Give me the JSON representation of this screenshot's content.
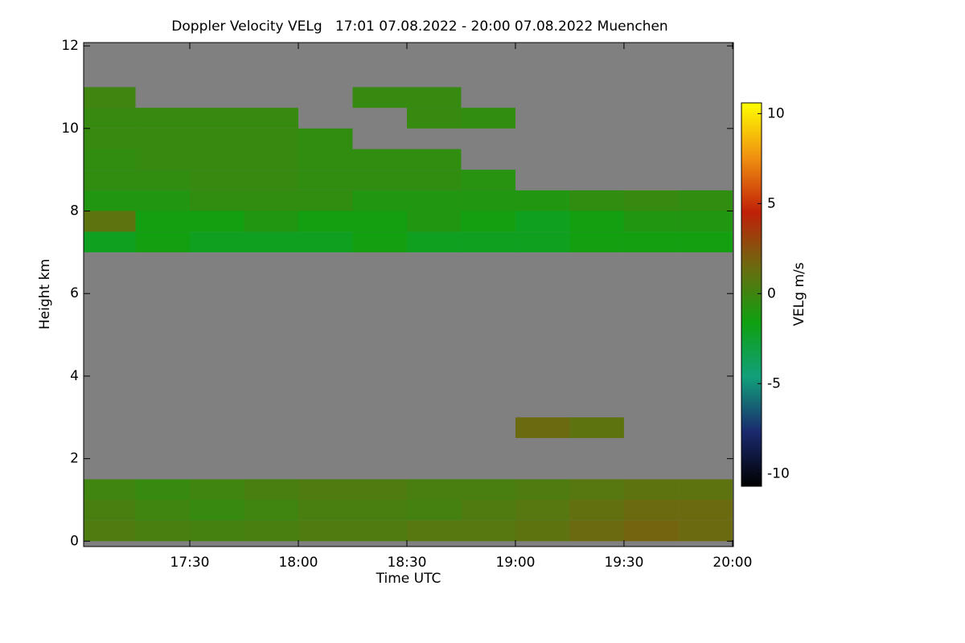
{
  "chart_data": {
    "type": "heatmap",
    "title": "Doppler Velocity VELg   17:01 07.08.2022 - 20:00 07.08.2022 Muenchen",
    "x_label": "Time UTC",
    "y_label": "Height km",
    "colorbar_label": "VELg m/s",
    "xlim": [
      17.011,
      20.004
    ],
    "xticks": [
      {
        "value": 17.5,
        "label": "17:30"
      },
      {
        "value": 18.0,
        "label": "18:00"
      },
      {
        "value": 18.5,
        "label": "18:30"
      },
      {
        "value": 19.0,
        "label": "19:00"
      },
      {
        "value": 19.5,
        "label": "19:30"
      },
      {
        "value": 20.0,
        "label": "20:00"
      }
    ],
    "ylim": [
      -0.13,
      12.08
    ],
    "yticks": [
      0,
      2,
      4,
      6,
      8,
      10,
      12
    ],
    "zlim": [
      -10.7,
      10.6
    ],
    "zticks": [
      -10,
      -5,
      0,
      5,
      10
    ],
    "colorscale": [
      "#000000",
      "#1a2a6e",
      "#11a07a",
      "#10a010",
      "#6b6b10",
      "#c02008",
      "#f09010",
      "#ffff00"
    ],
    "missing_color": "#808080",
    "x": [
      17.125,
      17.375,
      17.625,
      17.875,
      18.125,
      18.375,
      18.625,
      18.875,
      19.125,
      19.375,
      19.625,
      19.875
    ],
    "y": [
      0.25,
      0.75,
      1.25,
      1.75,
      2.25,
      2.75,
      3.25,
      3.75,
      4.25,
      4.75,
      5.25,
      5.75,
      6.25,
      6.75,
      7.25,
      7.75,
      8.25,
      8.75,
      9.25,
      9.75,
      10.25,
      10.75,
      11.25,
      11.75
    ],
    "z": [
      [
        0.5,
        0.3,
        0.2,
        0.3,
        0.5,
        0.5,
        0.8,
        0.8,
        1,
        1.5,
        1.8,
        1.5
      ],
      [
        0.3,
        0,
        -0.3,
        0,
        0.3,
        0.3,
        0.2,
        0.5,
        0.8,
        1.2,
        1.5,
        1.5
      ],
      [
        0,
        -0.3,
        0,
        0.3,
        0.5,
        0.5,
        0.3,
        0.3,
        0.5,
        0.8,
        1,
        1
      ],
      [
        null,
        null,
        null,
        null,
        null,
        null,
        null,
        null,
        null,
        null,
        null,
        null
      ],
      [
        null,
        null,
        null,
        null,
        null,
        null,
        null,
        null,
        null,
        null,
        null,
        null
      ],
      [
        null,
        null,
        null,
        null,
        null,
        null,
        null,
        null,
        1.5,
        1,
        null,
        null
      ],
      [
        null,
        null,
        null,
        null,
        null,
        null,
        null,
        null,
        null,
        null,
        null,
        null
      ],
      [
        null,
        null,
        null,
        null,
        null,
        null,
        null,
        null,
        null,
        null,
        null,
        null
      ],
      [
        null,
        null,
        null,
        null,
        null,
        null,
        null,
        null,
        null,
        null,
        null,
        null
      ],
      [
        null,
        null,
        null,
        null,
        null,
        null,
        null,
        null,
        null,
        null,
        null,
        null
      ],
      [
        null,
        null,
        null,
        null,
        null,
        null,
        null,
        null,
        null,
        null,
        null,
        null
      ],
      [
        null,
        null,
        null,
        null,
        null,
        null,
        null,
        null,
        null,
        null,
        null,
        null
      ],
      [
        null,
        null,
        null,
        null,
        null,
        null,
        null,
        null,
        null,
        null,
        null,
        null
      ],
      [
        null,
        null,
        null,
        null,
        null,
        null,
        null,
        null,
        null,
        null,
        null,
        null
      ],
      [
        -2,
        -1.5,
        -2,
        -2,
        -2,
        -1.5,
        -2,
        -2,
        -2,
        -1.5,
        -1.5,
        -1.5
      ],
      [
        1,
        -1.5,
        -1.5,
        -1,
        -1.5,
        -1.5,
        -1,
        -1.5,
        -2,
        -1.5,
        -1,
        -1
      ],
      [
        -1,
        -1,
        -0.5,
        -0.5,
        -0.5,
        -1,
        -1,
        -1,
        -1,
        -0.5,
        -0.3,
        -0.5
      ],
      [
        -0.5,
        -0.5,
        -0.3,
        -0.3,
        -0.5,
        -0.5,
        -0.5,
        -0.8,
        null,
        null,
        null,
        null
      ],
      [
        -0.5,
        -0.3,
        -0.3,
        -0.3,
        -0.5,
        -0.5,
        -0.5,
        null,
        null,
        null,
        null,
        null
      ],
      [
        -0.3,
        -0.3,
        -0.3,
        -0.3,
        -0.5,
        null,
        null,
        null,
        null,
        null,
        null,
        null
      ],
      [
        -0.3,
        -0.3,
        -0.3,
        -0.3,
        null,
        null,
        -0.3,
        -0.5,
        null,
        null,
        null,
        null
      ],
      [
        0,
        null,
        null,
        null,
        null,
        -0.3,
        -0.3,
        null,
        null,
        null,
        null,
        null
      ],
      [
        null,
        null,
        null,
        null,
        null,
        null,
        null,
        null,
        null,
        null,
        null,
        null
      ],
      [
        null,
        null,
        null,
        null,
        null,
        null,
        null,
        null,
        null,
        null,
        null,
        null
      ]
    ]
  }
}
